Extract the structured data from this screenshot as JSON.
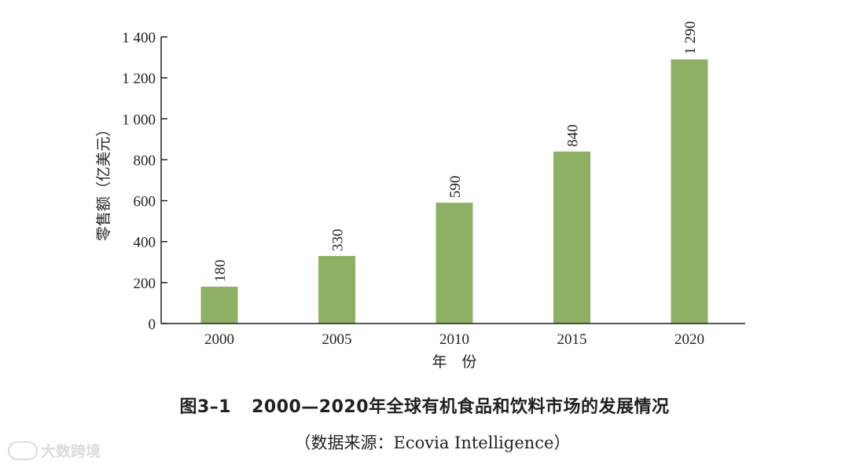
{
  "chart_data": {
    "type": "bar",
    "categories": [
      "2000",
      "2005",
      "2010",
      "2015",
      "2020"
    ],
    "values": [
      180,
      330,
      590,
      840,
      1290
    ],
    "value_labels": [
      "180",
      "330",
      "590",
      "840",
      "1 290"
    ],
    "ylabel": "零售额（亿美元）",
    "xlabel": "年　份",
    "ylim": [
      0,
      1400
    ],
    "yticks": [
      0,
      200,
      400,
      600,
      800,
      1000,
      1200,
      1400
    ],
    "ytick_labels": [
      "0",
      "200",
      "400",
      "600",
      "800",
      "1 000",
      "1 200",
      "1 400"
    ],
    "grid": false,
    "bar_color": "#8db064"
  },
  "caption": {
    "figure_number": "图3–1",
    "title": "2000—2020年全球有机食品和饮料市场的发展情况",
    "source": "（数据来源：Ecovia Intelligence）"
  },
  "watermark": {
    "text": "大数跨境"
  }
}
